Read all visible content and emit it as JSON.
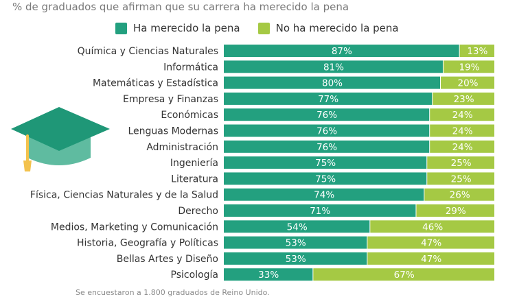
{
  "subtitle": "% de graduados que afirman que su carrera ha merecido la pena",
  "footnote": "Se encuestaron a 1.800 graduados de Reino Unido.",
  "colors": {
    "positive": "#23a07f",
    "negative": "#a5c944",
    "cap_top": "#1f9777",
    "cap_body": "#5fbba0",
    "tassel": "#f3c24d"
  },
  "chart_data": {
    "type": "bar",
    "orientation": "horizontal",
    "stacked": true,
    "title": "",
    "subtitle": "% de graduados que afirman que su carrera ha merecido la pena",
    "xlabel": "",
    "ylabel": "",
    "xlim": [
      0,
      100
    ],
    "grid": false,
    "legend": "top",
    "categories": [
      "Química y Ciencias Naturales",
      "Informática",
      "Matemáticas y Estadística",
      "Empresa y Finanzas",
      "Económicas",
      "Lenguas Modernas",
      "Administración",
      "Ingeniería",
      "Literatura",
      "Física, Ciencias Naturales y de la Salud",
      "Derecho",
      "Medios, Marketing y Comunicación",
      "Historia, Geografía y Políticas",
      "Bellas Artes y Diseño",
      "Psicología"
    ],
    "series": [
      {
        "name": "Ha merecido la pena",
        "values": [
          87,
          81,
          80,
          77,
          76,
          76,
          76,
          75,
          75,
          74,
          71,
          54,
          53,
          53,
          33
        ]
      },
      {
        "name": "No ha merecido la pena",
        "values": [
          13,
          19,
          20,
          23,
          24,
          24,
          24,
          25,
          25,
          26,
          29,
          46,
          47,
          47,
          67
        ]
      }
    ],
    "value_suffix": "%"
  }
}
